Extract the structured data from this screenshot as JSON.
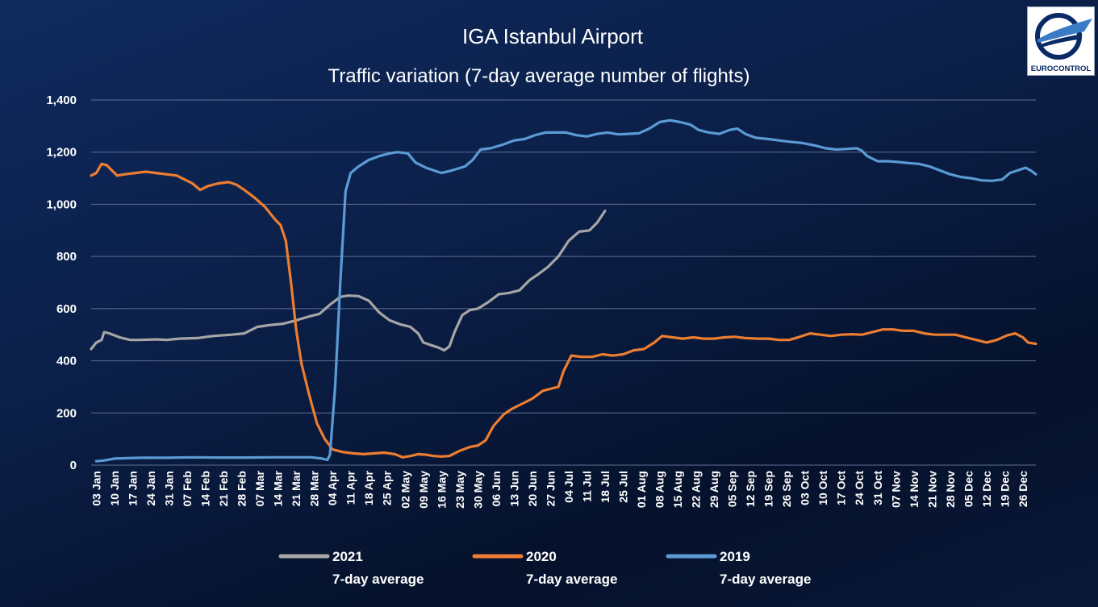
{
  "logo": {
    "text": "EUROCONTROL"
  },
  "chart_data": {
    "type": "line",
    "title": "IGA Istanbul Airport",
    "subtitle": "Traffic variation (7-day average number of flights)",
    "xlabel": "",
    "ylabel": "",
    "ylim": [
      0,
      1400
    ],
    "yticks": [
      0,
      200,
      400,
      600,
      800,
      1000,
      1200,
      1400
    ],
    "ytick_labels": [
      "0",
      "200",
      "400",
      "600",
      "800",
      "1,000",
      "1,200",
      "1,400"
    ],
    "x_day_range": [
      1,
      365
    ],
    "x_ticks": [
      {
        "day": 3,
        "label": "03 Jan"
      },
      {
        "day": 10,
        "label": "10 Jan"
      },
      {
        "day": 17,
        "label": "17 Jan"
      },
      {
        "day": 24,
        "label": "24 Jan"
      },
      {
        "day": 31,
        "label": "31 Jan"
      },
      {
        "day": 38,
        "label": "07 Feb"
      },
      {
        "day": 45,
        "label": "14 Feb"
      },
      {
        "day": 52,
        "label": "21 Feb"
      },
      {
        "day": 59,
        "label": "28 Feb"
      },
      {
        "day": 66,
        "label": "07 Mar"
      },
      {
        "day": 73,
        "label": "14 Mar"
      },
      {
        "day": 80,
        "label": "21 Mar"
      },
      {
        "day": 87,
        "label": "28 Mar"
      },
      {
        "day": 94,
        "label": "04 Apr"
      },
      {
        "day": 101,
        "label": "11 Apr"
      },
      {
        "day": 108,
        "label": "18 Apr"
      },
      {
        "day": 115,
        "label": "25 Apr"
      },
      {
        "day": 122,
        "label": "02 May"
      },
      {
        "day": 129,
        "label": "09 May"
      },
      {
        "day": 136,
        "label": "16 May"
      },
      {
        "day": 143,
        "label": "23 May"
      },
      {
        "day": 150,
        "label": "30 May"
      },
      {
        "day": 157,
        "label": "06 Jun"
      },
      {
        "day": 164,
        "label": "13 Jun"
      },
      {
        "day": 171,
        "label": "20 Jun"
      },
      {
        "day": 178,
        "label": "27 Jun"
      },
      {
        "day": 185,
        "label": "04 Jul"
      },
      {
        "day": 192,
        "label": "11 Jul"
      },
      {
        "day": 199,
        "label": "18 Jul"
      },
      {
        "day": 206,
        "label": "25 Jul"
      },
      {
        "day": 213,
        "label": "01 Aug"
      },
      {
        "day": 220,
        "label": "08 Aug"
      },
      {
        "day": 227,
        "label": "15 Aug"
      },
      {
        "day": 234,
        "label": "22 Aug"
      },
      {
        "day": 241,
        "label": "29 Aug"
      },
      {
        "day": 248,
        "label": "05 Sep"
      },
      {
        "day": 255,
        "label": "12 Sep"
      },
      {
        "day": 262,
        "label": "19 Sep"
      },
      {
        "day": 269,
        "label": "26 Sep"
      },
      {
        "day": 276,
        "label": "03 Oct"
      },
      {
        "day": 283,
        "label": "10 Oct"
      },
      {
        "day": 290,
        "label": "17 Oct"
      },
      {
        "day": 297,
        "label": "24 Oct"
      },
      {
        "day": 304,
        "label": "31 Oct"
      },
      {
        "day": 311,
        "label": "07 Nov"
      },
      {
        "day": 318,
        "label": "14 Nov"
      },
      {
        "day": 325,
        "label": "21 Nov"
      },
      {
        "day": 332,
        "label": "28 Nov"
      },
      {
        "day": 339,
        "label": "05 Dec"
      },
      {
        "day": 346,
        "label": "12 Dec"
      },
      {
        "day": 353,
        "label": "19 Dec"
      },
      {
        "day": 360,
        "label": "26 Dec"
      }
    ],
    "grid": "horizontal",
    "legend_position": "bottom",
    "legend": [
      {
        "name": "2021",
        "sub": "7-day average",
        "color": "#a6a6a6"
      },
      {
        "name": "2020",
        "sub": "7-day average",
        "color": "#ed7d31"
      },
      {
        "name": "2019",
        "sub": "7-day average",
        "color": "#5b9bd5"
      }
    ],
    "series": [
      {
        "name": "2021",
        "color": "#a6a6a6",
        "points": [
          [
            1,
            445
          ],
          [
            3,
            470
          ],
          [
            5,
            480
          ],
          [
            6,
            510
          ],
          [
            8,
            505
          ],
          [
            12,
            490
          ],
          [
            16,
            480
          ],
          [
            20,
            480
          ],
          [
            26,
            482
          ],
          [
            30,
            480
          ],
          [
            35,
            485
          ],
          [
            42,
            487
          ],
          [
            48,
            495
          ],
          [
            55,
            500
          ],
          [
            60,
            505
          ],
          [
            65,
            530
          ],
          [
            70,
            537
          ],
          [
            75,
            542
          ],
          [
            80,
            555
          ],
          [
            85,
            570
          ],
          [
            89,
            580
          ],
          [
            93,
            615
          ],
          [
            97,
            645
          ],
          [
            100,
            650
          ],
          [
            104,
            648
          ],
          [
            108,
            630
          ],
          [
            112,
            585
          ],
          [
            116,
            555
          ],
          [
            120,
            540
          ],
          [
            124,
            530
          ],
          [
            127,
            505
          ],
          [
            129,
            470
          ],
          [
            132,
            460
          ],
          [
            135,
            450
          ],
          [
            137,
            440
          ],
          [
            139,
            455
          ],
          [
            141,
            510
          ],
          [
            144,
            575
          ],
          [
            147,
            595
          ],
          [
            150,
            600
          ],
          [
            154,
            625
          ],
          [
            158,
            655
          ],
          [
            162,
            660
          ],
          [
            166,
            670
          ],
          [
            170,
            710
          ],
          [
            173,
            730
          ],
          [
            177,
            760
          ],
          [
            181,
            800
          ],
          [
            185,
            860
          ],
          [
            189,
            895
          ],
          [
            193,
            900
          ],
          [
            196,
            930
          ],
          [
            199,
            975
          ]
        ]
      },
      {
        "name": "2020",
        "color": "#ed7d31",
        "points": [
          [
            1,
            1110
          ],
          [
            3,
            1120
          ],
          [
            5,
            1155
          ],
          [
            7,
            1150
          ],
          [
            9,
            1130
          ],
          [
            11,
            1110
          ],
          [
            14,
            1115
          ],
          [
            18,
            1120
          ],
          [
            22,
            1125
          ],
          [
            26,
            1120
          ],
          [
            30,
            1115
          ],
          [
            34,
            1110
          ],
          [
            36,
            1100
          ],
          [
            40,
            1080
          ],
          [
            43,
            1055
          ],
          [
            46,
            1070
          ],
          [
            50,
            1080
          ],
          [
            54,
            1085
          ],
          [
            57,
            1075
          ],
          [
            60,
            1055
          ],
          [
            64,
            1025
          ],
          [
            68,
            990
          ],
          [
            72,
            940
          ],
          [
            74,
            920
          ],
          [
            76,
            860
          ],
          [
            78,
            700
          ],
          [
            80,
            520
          ],
          [
            82,
            390
          ],
          [
            85,
            270
          ],
          [
            88,
            160
          ],
          [
            91,
            100
          ],
          [
            94,
            60
          ],
          [
            98,
            50
          ],
          [
            102,
            45
          ],
          [
            106,
            42
          ],
          [
            110,
            45
          ],
          [
            114,
            48
          ],
          [
            118,
            42
          ],
          [
            121,
            30
          ],
          [
            124,
            35
          ],
          [
            127,
            42
          ],
          [
            130,
            40
          ],
          [
            133,
            35
          ],
          [
            136,
            33
          ],
          [
            139,
            35
          ],
          [
            143,
            55
          ],
          [
            147,
            70
          ],
          [
            150,
            75
          ],
          [
            153,
            95
          ],
          [
            156,
            150
          ],
          [
            160,
            195
          ],
          [
            163,
            215
          ],
          [
            167,
            235
          ],
          [
            171,
            255
          ],
          [
            175,
            285
          ],
          [
            179,
            295
          ],
          [
            181,
            300
          ],
          [
            183,
            360
          ],
          [
            186,
            420
          ],
          [
            190,
            415
          ],
          [
            194,
            415
          ],
          [
            198,
            425
          ],
          [
            202,
            420
          ],
          [
            206,
            425
          ],
          [
            210,
            440
          ],
          [
            214,
            445
          ],
          [
            218,
            470
          ],
          [
            221,
            495
          ],
          [
            225,
            490
          ],
          [
            229,
            485
          ],
          [
            233,
            490
          ],
          [
            237,
            485
          ],
          [
            241,
            485
          ],
          [
            245,
            490
          ],
          [
            249,
            492
          ],
          [
            253,
            487
          ],
          [
            258,
            485
          ],
          [
            262,
            485
          ],
          [
            266,
            480
          ],
          [
            270,
            480
          ],
          [
            274,
            492
          ],
          [
            278,
            505
          ],
          [
            282,
            500
          ],
          [
            286,
            495
          ],
          [
            290,
            500
          ],
          [
            294,
            502
          ],
          [
            298,
            500
          ],
          [
            302,
            510
          ],
          [
            306,
            520
          ],
          [
            310,
            520
          ],
          [
            314,
            515
          ],
          [
            318,
            515
          ],
          [
            322,
            505
          ],
          [
            326,
            500
          ],
          [
            330,
            500
          ],
          [
            334,
            500
          ],
          [
            338,
            490
          ],
          [
            342,
            480
          ],
          [
            346,
            470
          ],
          [
            350,
            480
          ],
          [
            354,
            498
          ],
          [
            357,
            505
          ],
          [
            360,
            490
          ],
          [
            362,
            470
          ],
          [
            365,
            465
          ]
        ]
      },
      {
        "name": "2019",
        "color": "#5b9bd5",
        "points": [
          [
            3,
            15
          ],
          [
            6,
            18
          ],
          [
            10,
            25
          ],
          [
            15,
            27
          ],
          [
            20,
            28
          ],
          [
            30,
            28
          ],
          [
            40,
            30
          ],
          [
            50,
            29
          ],
          [
            60,
            29
          ],
          [
            70,
            30
          ],
          [
            80,
            30
          ],
          [
            86,
            30
          ],
          [
            90,
            25
          ],
          [
            92,
            20
          ],
          [
            93,
            40
          ],
          [
            95,
            300
          ],
          [
            97,
            700
          ],
          [
            99,
            1050
          ],
          [
            101,
            1120
          ],
          [
            104,
            1145
          ],
          [
            108,
            1170
          ],
          [
            112,
            1185
          ],
          [
            116,
            1195
          ],
          [
            119,
            1200
          ],
          [
            123,
            1195
          ],
          [
            126,
            1160
          ],
          [
            130,
            1140
          ],
          [
            133,
            1130
          ],
          [
            136,
            1120
          ],
          [
            140,
            1130
          ],
          [
            145,
            1145
          ],
          [
            148,
            1170
          ],
          [
            151,
            1210
          ],
          [
            155,
            1215
          ],
          [
            160,
            1230
          ],
          [
            164,
            1245
          ],
          [
            168,
            1250
          ],
          [
            172,
            1265
          ],
          [
            176,
            1275
          ],
          [
            180,
            1275
          ],
          [
            184,
            1275
          ],
          [
            188,
            1265
          ],
          [
            192,
            1260
          ],
          [
            196,
            1270
          ],
          [
            200,
            1275
          ],
          [
            204,
            1268
          ],
          [
            208,
            1270
          ],
          [
            212,
            1272
          ],
          [
            216,
            1290
          ],
          [
            220,
            1315
          ],
          [
            224,
            1322
          ],
          [
            228,
            1315
          ],
          [
            232,
            1305
          ],
          [
            235,
            1285
          ],
          [
            239,
            1275
          ],
          [
            243,
            1270
          ],
          [
            247,
            1285
          ],
          [
            250,
            1290
          ],
          [
            253,
            1270
          ],
          [
            257,
            1255
          ],
          [
            262,
            1250
          ],
          [
            266,
            1245
          ],
          [
            270,
            1240
          ],
          [
            275,
            1235
          ],
          [
            280,
            1225
          ],
          [
            284,
            1215
          ],
          [
            288,
            1210
          ],
          [
            292,
            1212
          ],
          [
            296,
            1215
          ],
          [
            298,
            1205
          ],
          [
            300,
            1185
          ],
          [
            304,
            1165
          ],
          [
            308,
            1165
          ],
          [
            312,
            1162
          ],
          [
            316,
            1158
          ],
          [
            320,
            1155
          ],
          [
            324,
            1145
          ],
          [
            328,
            1130
          ],
          [
            332,
            1115
          ],
          [
            336,
            1105
          ],
          [
            340,
            1100
          ],
          [
            344,
            1092
          ],
          [
            348,
            1090
          ],
          [
            352,
            1095
          ],
          [
            355,
            1120
          ],
          [
            358,
            1130
          ],
          [
            361,
            1140
          ],
          [
            363,
            1130
          ],
          [
            365,
            1115
          ]
        ]
      }
    ]
  }
}
